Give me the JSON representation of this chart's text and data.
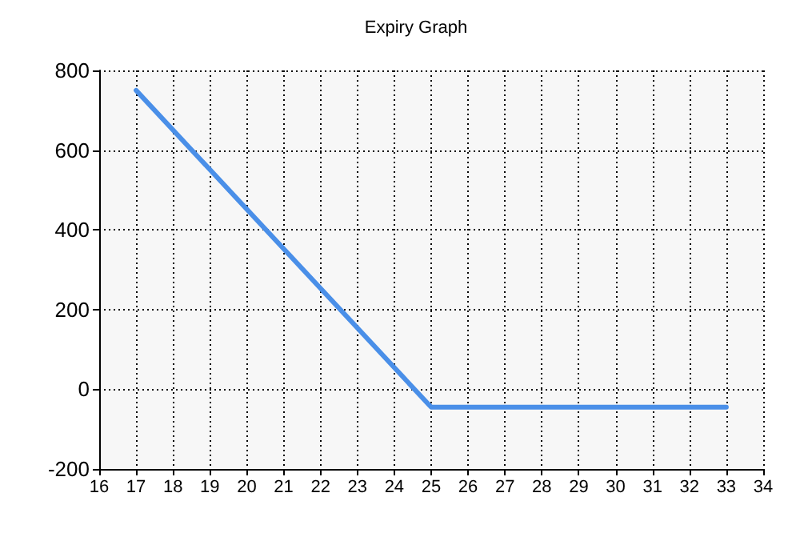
{
  "chart_data": {
    "type": "line",
    "title": "Expiry Graph",
    "x": [
      17,
      25,
      33
    ],
    "series": [
      {
        "color": "#4a8fe8",
        "values": [
          750,
          -45,
          -45
        ]
      }
    ],
    "xlim": [
      16,
      34
    ],
    "xticks": [
      16,
      17,
      18,
      19,
      20,
      21,
      22,
      23,
      24,
      25,
      26,
      27,
      28,
      29,
      30,
      31,
      32,
      33,
      34
    ],
    "ylim": [
      -200,
      800
    ],
    "yticks": [
      -200,
      0,
      200,
      400,
      600,
      800
    ],
    "grid": true,
    "marker": "none",
    "line_style": "solid"
  }
}
